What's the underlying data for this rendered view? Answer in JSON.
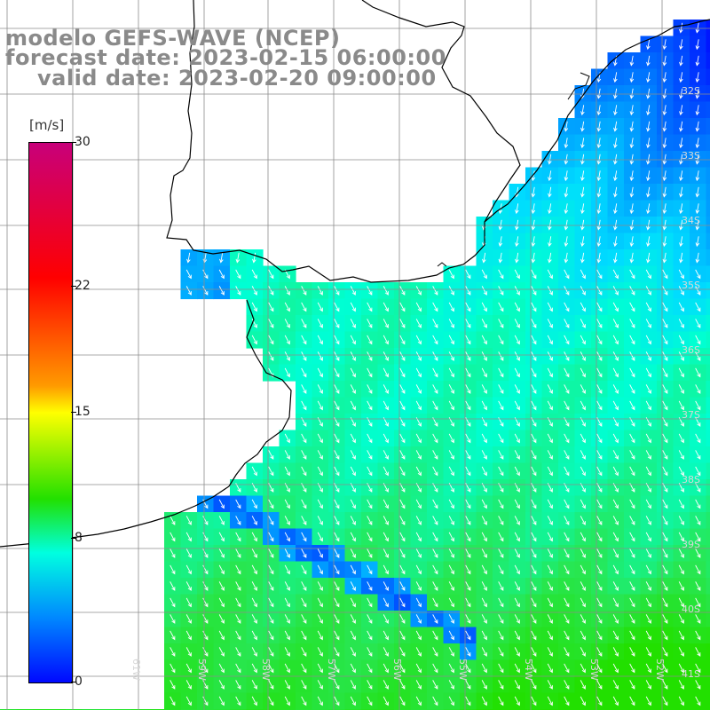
{
  "title": {
    "line1": "modelo GEFS-WAVE (NCEP)",
    "line2": "forecast date: 2023-02-15 06:00:00",
    "line3": "valid date: 2023-02-20 09:00:00"
  },
  "colorbar": {
    "unit": "[m/s]",
    "ticks": [
      "30",
      "22",
      "15",
      "8",
      "0"
    ],
    "tick_values": [
      30,
      22,
      15,
      8,
      0
    ],
    "colors": [
      "#c8007a",
      "#ff0000",
      "#ff9a00",
      "#ffff00",
      "#22e000",
      "#00ffe0",
      "#0088ff",
      "#0008ff"
    ]
  },
  "grid": {
    "lon_labels": [
      "61W",
      "59W",
      "58W",
      "57W",
      "56W",
      "55W",
      "54W",
      "53W",
      "52W"
    ],
    "lat_labels": [
      "32S",
      "33S",
      "34S",
      "35S",
      "36S",
      "37S",
      "38S",
      "39S",
      "40S",
      "41S"
    ]
  },
  "map_colors": {
    "land": "#ffffff",
    "coast": "#000000",
    "grid": "#8c8c8c",
    "arrow": "#ffffff"
  }
}
